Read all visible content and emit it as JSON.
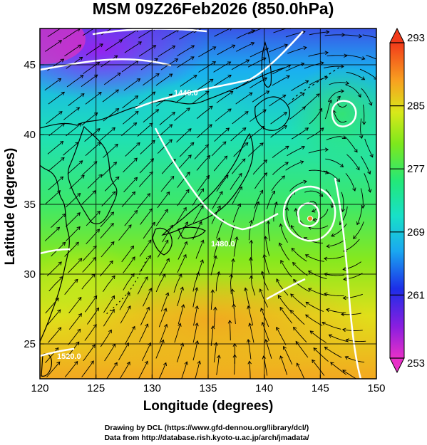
{
  "title": "MSM 09Z26Feb2026 (850.0hPa)",
  "x_label": "Longitude (degrees)",
  "y_label": "Latitude  (degrees)",
  "x_ticks": [
    "120",
    "125",
    "130",
    "135",
    "140",
    "145",
    "150"
  ],
  "y_ticks": [
    "25",
    "30",
    "35",
    "40",
    "45"
  ],
  "colorbar": {
    "min": 253,
    "max": 293,
    "ticks": [
      "293",
      "285",
      "277",
      "269",
      "261",
      "253"
    ]
  },
  "contour_labels": [
    "1440.0",
    "1480.0",
    "1520.0"
  ],
  "credits": {
    "line1": "Drawing by DCL (https://www.gfd-dennou.org/library/dcl/)",
    "line2": "Data from http://database.rish.kyoto-u.ac.jp/arch/jmadata/"
  },
  "map": {
    "lon_range": [
      120,
      150
    ],
    "lat_range": [
      22.5,
      47.6
    ],
    "gridlines": true,
    "features": [
      "temperature-shading",
      "geopotential-height-contours",
      "streamlines",
      "coastlines"
    ],
    "lows": [
      {
        "lon": 144.2,
        "lat": 34.9
      },
      {
        "lon": 147.0,
        "lat": 42.5
      }
    ]
  }
}
